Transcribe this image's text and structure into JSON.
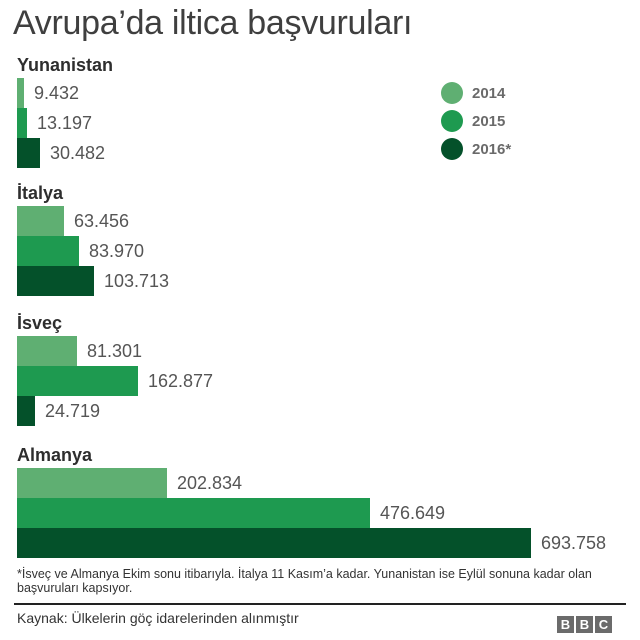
{
  "title": "Avrupa’da iltica başvuruları",
  "legend": [
    {
      "label": "2014",
      "color": "#5faf72"
    },
    {
      "label": "2015",
      "color": "#1e9a50"
    },
    {
      "label": "2016*",
      "color": "#04512a"
    }
  ],
  "groups": [
    {
      "label": "Yunanistan",
      "values_text": [
        "9.432",
        "13.197",
        "30.482"
      ]
    },
    {
      "label": "İtalya",
      "values_text": [
        "63.456",
        "83.970",
        "103.713"
      ]
    },
    {
      "label": "İsveç",
      "values_text": [
        "81.301",
        "162.877",
        "24.719"
      ]
    },
    {
      "label": "Almanya",
      "values_text": [
        "202.834",
        "476.649",
        "693.758"
      ]
    }
  ],
  "note": "*İsveç ve Almanya Ekim sonu itibarıyla. İtalya 11 Kasım’a kadar. Yunanistan ise Eylül sonuna kadar olan başvuruları kapsıyor.",
  "source": "Kaynak: Ülkelerin göç idarelerinden alınmıştır",
  "logo": [
    "B",
    "B",
    "C"
  ],
  "chart_data": {
    "type": "bar",
    "orientation": "horizontal",
    "title": "Avrupa’da iltica başvuruları",
    "categories": [
      "Yunanistan",
      "İtalya",
      "İsveç",
      "Almanya"
    ],
    "series": [
      {
        "name": "2014",
        "color": "#5faf72",
        "values": [
          9432,
          63456,
          81301,
          202834
        ]
      },
      {
        "name": "2015",
        "color": "#1e9a50",
        "values": [
          13197,
          83970,
          162877,
          476649
        ]
      },
      {
        "name": "2016*",
        "color": "#04512a",
        "values": [
          30482,
          103713,
          24719,
          693758
        ]
      }
    ],
    "xlabel": "",
    "ylabel": "",
    "grid": false,
    "legend_position": "top-right",
    "annotations": [
      "*İsveç ve Almanya Ekim sonu itibarıyla. İtalya 11 Kasım’a kadar. Yunanistan ise Eylül sonuna kadar olan başvuruları kapsıyor.",
      "Kaynak: Ülkelerin göç idarelerinden alınmıştır"
    ]
  }
}
